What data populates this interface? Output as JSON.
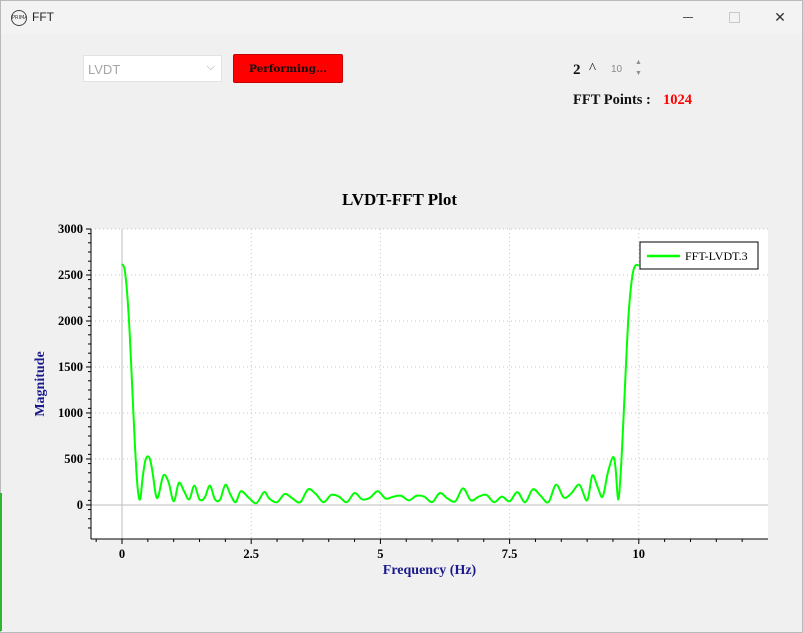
{
  "window": {
    "title": "FFT",
    "icon_label": "PRIMA"
  },
  "controls": {
    "sensor_select": {
      "value": "LVDT"
    },
    "perform_button": {
      "label": "Performing..."
    },
    "power": {
      "base": "2",
      "caret": "^",
      "exponent": "10"
    },
    "fft_points": {
      "label": "FFT Points :",
      "value": "1024"
    }
  },
  "colors": {
    "button_red": "#ff0000",
    "series_green": "#00ff00",
    "fft_value_red": "#ff0000",
    "axis_label_navy": "#1a1a8c"
  },
  "chart_data": {
    "type": "line",
    "title": "LVDT-FFT Plot",
    "xlabel": "Frequency (Hz)",
    "ylabel": "Magnitude",
    "xlim": [
      -0.6,
      12.5
    ],
    "ylim": [
      -370,
      3000
    ],
    "xticks": [
      0,
      2.5,
      5,
      7.5,
      10
    ],
    "xtick_labels": [
      "0",
      "2.5",
      "5",
      "7.5",
      "10"
    ],
    "yticks": [
      0,
      500,
      1000,
      1500,
      2000,
      2500,
      3000
    ],
    "ytick_labels": [
      "0",
      "500",
      "1000",
      "1500",
      "2000",
      "2500",
      "3000"
    ],
    "grid": true,
    "legend_position": "top-right",
    "series": [
      {
        "name": "FFT-LVDT.3",
        "color": "#00ff00",
        "x": [
          0,
          0.05,
          0.1,
          0.15,
          0.2,
          0.25,
          0.3,
          0.35,
          0.4,
          0.45,
          0.5,
          0.55,
          0.6,
          0.65,
          0.7,
          0.8,
          0.9,
          1.0,
          1.1,
          1.2,
          1.3,
          1.4,
          1.5,
          1.6,
          1.7,
          1.8,
          1.9,
          2.0,
          2.1,
          2.2,
          2.3,
          2.45,
          2.6,
          2.75,
          2.85,
          3.0,
          3.15,
          3.3,
          3.45,
          3.6,
          3.75,
          3.9,
          4.05,
          4.2,
          4.35,
          4.5,
          4.65,
          4.8,
          4.95,
          5.1,
          5.25,
          5.4,
          5.55,
          5.7,
          5.85,
          6.0,
          6.15,
          6.3,
          6.45,
          6.6,
          6.75,
          6.9,
          7.05,
          7.2,
          7.35,
          7.5,
          7.65,
          7.8,
          7.95,
          8.1,
          8.25,
          8.4,
          8.55,
          8.7,
          8.85,
          9.0,
          9.1,
          9.2,
          9.3,
          9.4,
          9.5,
          9.55,
          9.6,
          9.65,
          9.7,
          9.75,
          9.8,
          9.85,
          9.9,
          9.95,
          10.0
        ],
        "values": [
          2620,
          2560,
          2300,
          1850,
          1250,
          650,
          200,
          60,
          300,
          480,
          530,
          480,
          320,
          120,
          90,
          320,
          250,
          40,
          240,
          150,
          60,
          210,
          60,
          80,
          210,
          60,
          60,
          220,
          110,
          30,
          150,
          80,
          20,
          140,
          70,
          30,
          120,
          70,
          30,
          170,
          120,
          30,
          110,
          90,
          30,
          130,
          60,
          80,
          150,
          70,
          90,
          100,
          50,
          100,
          90,
          30,
          130,
          70,
          40,
          180,
          50,
          90,
          110,
          30,
          90,
          40,
          140,
          30,
          170,
          100,
          30,
          220,
          80,
          130,
          220,
          50,
          320,
          200,
          90,
          350,
          520,
          400,
          60,
          350,
          900,
          1500,
          2050,
          2380,
          2560,
          2610,
          2600
        ]
      }
    ]
  }
}
